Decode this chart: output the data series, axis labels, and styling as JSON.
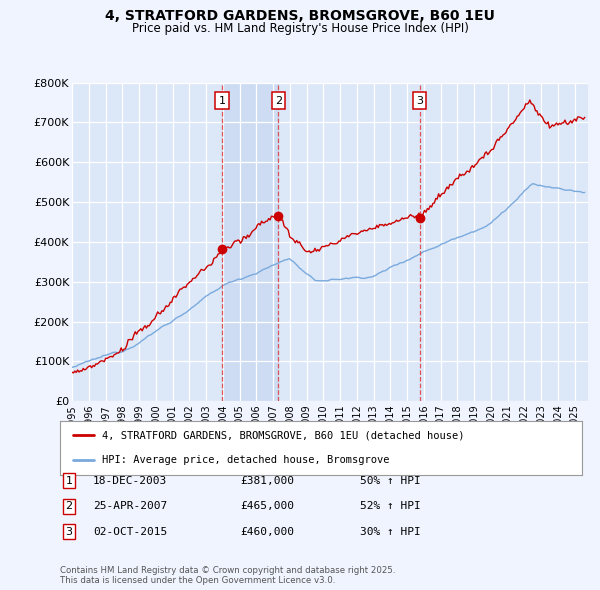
{
  "title_line1": "4, STRATFORD GARDENS, BROMSGROVE, B60 1EU",
  "title_line2": "Price paid vs. HM Land Registry's House Price Index (HPI)",
  "ylim": [
    0,
    800000
  ],
  "yticks": [
    0,
    100000,
    200000,
    300000,
    400000,
    500000,
    600000,
    700000,
    800000
  ],
  "ytick_labels": [
    "£0",
    "£100K",
    "£200K",
    "£300K",
    "£400K",
    "£500K",
    "£600K",
    "£700K",
    "£800K"
  ],
  "xlim_start": 1995.0,
  "xlim_end": 2025.8,
  "background_color": "#f0f4ff",
  "plot_bg_color": "#dce8f8",
  "grid_color": "#ffffff",
  "red_line_color": "#cc0000",
  "blue_line_color": "#7aaadd",
  "vline_color": "#dd4444",
  "marker_fill": "#cc0000",
  "marker_border": "#cc0000",
  "shade_color": "#c8d8f0",
  "transactions": [
    {
      "num": 1,
      "date": "18-DEC-2003",
      "year": 2003.96,
      "price": 381000,
      "hpi_pct": "50% ↑ HPI"
    },
    {
      "num": 2,
      "date": "25-APR-2007",
      "year": 2007.32,
      "price": 465000,
      "hpi_pct": "52% ↑ HPI"
    },
    {
      "num": 3,
      "date": "02-OCT-2015",
      "year": 2015.75,
      "price": 460000,
      "hpi_pct": "30% ↑ HPI"
    }
  ],
  "legend_label_red": "4, STRATFORD GARDENS, BROMSGROVE, B60 1EU (detached house)",
  "legend_label_blue": "HPI: Average price, detached house, Bromsgrove",
  "footer": "Contains HM Land Registry data © Crown copyright and database right 2025.\nThis data is licensed under the Open Government Licence v3.0."
}
